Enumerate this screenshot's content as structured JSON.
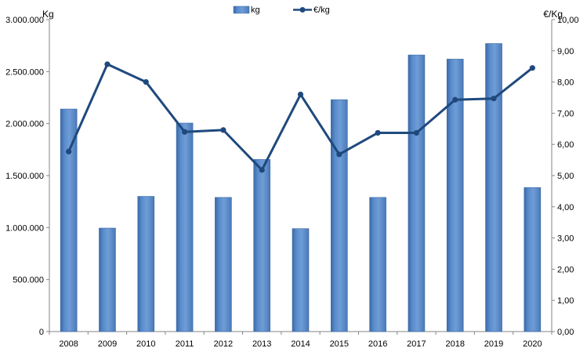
{
  "chart_data": {
    "type": "bar",
    "title": "",
    "xlabel": "",
    "ylabel": "Kg",
    "y2label": "€/Kg",
    "categories": [
      "2008",
      "2009",
      "2010",
      "2011",
      "2012",
      "2013",
      "2014",
      "2015",
      "2016",
      "2017",
      "2018",
      "2019",
      "2020"
    ],
    "series": [
      {
        "name": "kg",
        "type": "bar",
        "axis": "left",
        "color": "#4f81bd",
        "values": [
          2140000,
          995000,
          1300000,
          2005000,
          1290000,
          1655000,
          990000,
          2230000,
          1290000,
          2660000,
          2620000,
          2770000,
          1385000
        ]
      },
      {
        "name": "€/kg",
        "type": "line",
        "axis": "right",
        "color": "#1f497d",
        "values": [
          5.77,
          8.57,
          8.0,
          6.4,
          6.46,
          5.18,
          7.6,
          5.68,
          6.37,
          6.37,
          7.43,
          7.47,
          8.45
        ]
      }
    ],
    "ylim": [
      0,
      3000000
    ],
    "y2lim": [
      0,
      10
    ],
    "yticks": [
      "0",
      "500.000",
      "1.000.000",
      "1.500.000",
      "2.000.000",
      "2.500.000",
      "3.000.000"
    ],
    "y2ticks": [
      "0,00",
      "1,00",
      "2,00",
      "3,00",
      "4,00",
      "5,00",
      "6,00",
      "7,00",
      "8,00",
      "9,00",
      "10,00"
    ],
    "grid": false,
    "legend": "top-center"
  }
}
